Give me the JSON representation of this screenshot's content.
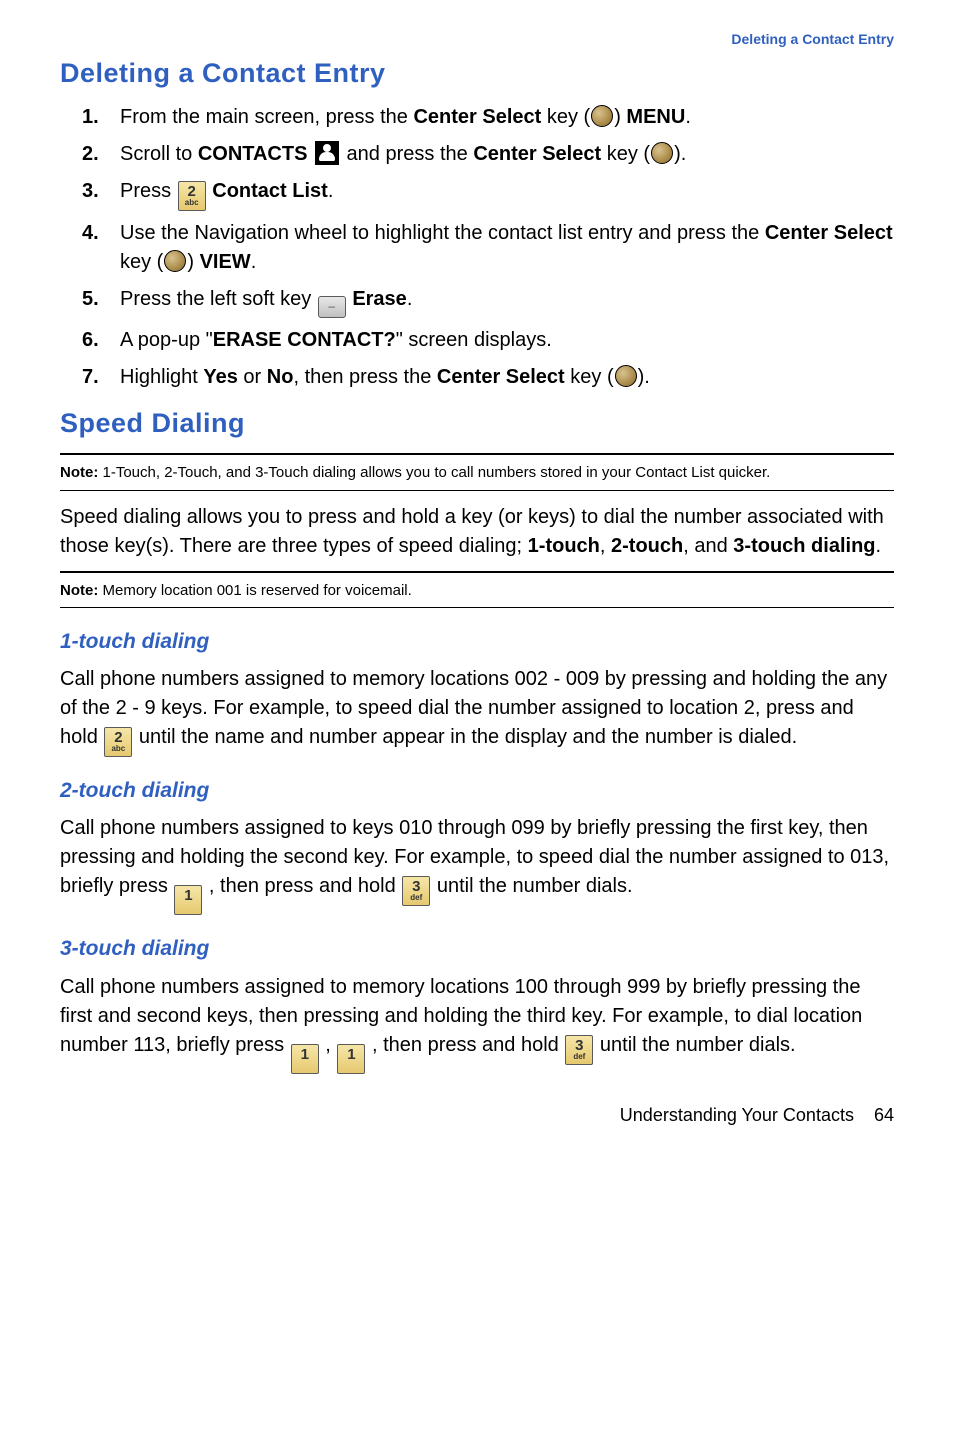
{
  "colors": {
    "heading_blue": "#2f5fbf",
    "section_blue": "#2f5fbf",
    "subheading_blue": "#2f5fbf",
    "body_text": "#000000",
    "key_fill_top": "#f5e6a8",
    "key_fill_bottom": "#e6c96f",
    "key_border": "#5a5a5a",
    "circle_gold_light": "#d9c38f",
    "circle_gold_dark": "#8a6a2e"
  },
  "typography": {
    "heading_fontsize": 27,
    "subheading_fontsize": 21,
    "body_fontsize": 20,
    "note_fontsize": 15,
    "footer_fontsize": 18
  },
  "header_link": "Deleting a Contact Entry",
  "sections": {
    "delete": {
      "title": "Deleting a Contact Entry",
      "steps": [
        {
          "n": "1.",
          "pre": "From the main screen, press the ",
          "b1": "Center Select",
          "mid1": " key (",
          "icon": "circle",
          "mid2": ") ",
          "b2": "MENU",
          "post": "."
        },
        {
          "n": "2.",
          "pre": "Scroll to ",
          "b1": "CONTACTS",
          "mid1": " ",
          "icon": "contacts",
          "mid2": " and press the ",
          "b2": "Center Select",
          "mid3": " key (",
          "icon2": "circle",
          "post": ")."
        },
        {
          "n": "3.",
          "pre": "Press ",
          "icon": "key2",
          "mid1": " ",
          "b1": "Contact List",
          "post": "."
        },
        {
          "n": "4.",
          "pre": "Use the Navigation wheel to highlight the contact list entry and press the ",
          "b1": "Center Select",
          "mid1": " key (",
          "icon": "circle",
          "mid2": ") ",
          "b2": "VIEW",
          "post": "."
        },
        {
          "n": "5.",
          "pre": "Press the left soft key ",
          "icon": "softkey",
          "mid1": " ",
          "b1": "Erase",
          "post": "."
        },
        {
          "n": "6.",
          "pre": "A pop-up \"",
          "b1": "ERASE CONTACT?",
          "post": "\" screen displays."
        },
        {
          "n": "7.",
          "pre": "Highlight ",
          "b1": "Yes",
          "mid1": " or ",
          "b2": "No",
          "mid2": ", then press the ",
          "b3": "Center Select",
          "mid3": " key (",
          "icon": "circle",
          "post": ")."
        }
      ]
    },
    "speed": {
      "title": "Speed Dialing",
      "note1_label": "Note:",
      "note1_text": " 1-Touch, 2-Touch, and 3-Touch dialing allows you to call numbers stored in your Contact List quicker.",
      "intro_pre": "Speed dialing allows you to press and hold a key (or keys) to dial the number associated with those key(s). There are three types of speed dialing; ",
      "intro_b1": "1-touch",
      "intro_mid1": ", ",
      "intro_b2": "2-touch",
      "intro_mid2": ", and ",
      "intro_b3": "3-touch dialing",
      "intro_post": ".",
      "note2_label": "Note:",
      "note2_text": " Memory location 001 is reserved for voicemail.",
      "sub1": {
        "title": "1-touch dialing",
        "text_pre": "Call phone numbers assigned to memory locations 002 - 009 by pressing and holding the any of the 2 - 9 keys. For example, to speed dial the number assigned to location 2, press and hold ",
        "text_post": " until the name and number appear in the display and the number is dialed."
      },
      "sub2": {
        "title": "2-touch dialing",
        "text_pre": "Call phone numbers assigned to keys 010 through 099 by briefly pressing the first key, then pressing and holding the second key. For example, to speed dial the number assigned to 013, briefly press ",
        "text_mid": " , then press and hold ",
        "text_post": " until the number dials."
      },
      "sub3": {
        "title": "3-touch dialing",
        "text_pre": "Call phone numbers assigned to memory locations 100 through 999 by briefly pressing the first and second keys, then pressing and holding the third key. For example, to dial location number 113, briefly press ",
        "text_mid1": " , ",
        "text_mid2": " , then press and hold ",
        "text_post": " until the number dials."
      }
    }
  },
  "keys": {
    "key1": {
      "big": "1",
      "small": ""
    },
    "key2": {
      "big": "2",
      "small": "abc"
    },
    "key3": {
      "big": "3",
      "small": "def"
    }
  },
  "footer": {
    "text": "Understanding Your Contacts",
    "page": "64"
  }
}
